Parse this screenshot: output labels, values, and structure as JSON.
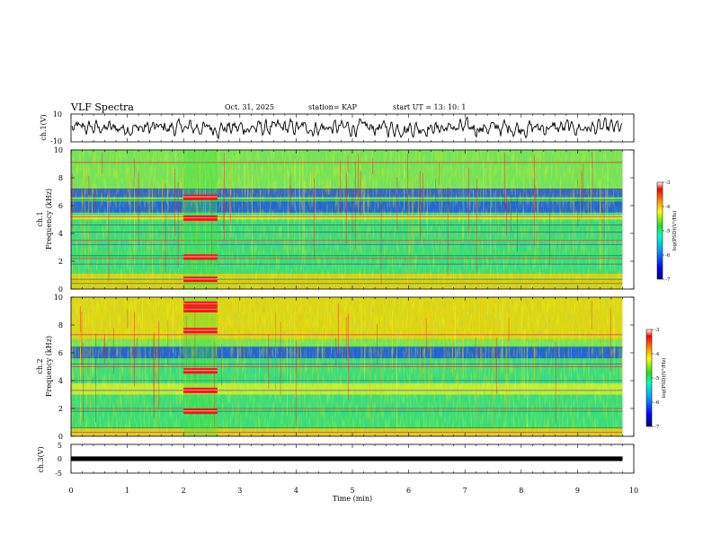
{
  "header": {
    "title": "VLF Spectra",
    "date": "Oct. 31, 2025",
    "station": "station= KAP",
    "start": "start  UT =   13: 10: 1"
  },
  "chart_data": [
    {
      "id": "ch1-waveform",
      "type": "line",
      "ylabel": "ch.1(V)",
      "ylim": [
        -10,
        10
      ],
      "yticks": [
        "10",
        "-10"
      ],
      "xlim": [
        0,
        10
      ],
      "data_extent_min": 9.8,
      "amplitude_typical": 4.5
    },
    {
      "id": "ch1-spectrogram",
      "type": "heatmap",
      "ylabel_line1": "ch.1",
      "ylabel_line2": "Frequency (kHz)",
      "ylim": [
        0,
        10
      ],
      "yticks": [
        "0",
        "2",
        "4",
        "6",
        "8",
        "10"
      ],
      "xlim": [
        0,
        10
      ],
      "data_extent_min": 9.8,
      "bands": [
        {
          "f0": 5.5,
          "f1": 6.3,
          "level": "low"
        },
        {
          "f0": 6.6,
          "f1": 7.2,
          "level": "low"
        },
        {
          "f0": 5.0,
          "f1": 5.3,
          "level": "mid-high"
        },
        {
          "f0": 0.0,
          "f1": 1.1,
          "level": "high"
        }
      ],
      "lines_khz": [
        0.4,
        0.7,
        1.8,
        2.2,
        2.4,
        3.2,
        3.5,
        4.1,
        4.6,
        5.2,
        6.4,
        7.2,
        9.1
      ],
      "burst": {
        "t0": 2.0,
        "t1": 2.6,
        "freqs_khz": [
          0.7,
          2.3,
          5.1,
          6.6
        ]
      }
    },
    {
      "id": "ch2-spectrogram",
      "type": "heatmap",
      "ylabel_line1": "ch.2",
      "ylabel_line2": "Frequency (kHz)",
      "ylim": [
        0,
        10
      ],
      "yticks": [
        "0",
        "2",
        "4",
        "6",
        "8",
        "10"
      ],
      "xlim": [
        0,
        10
      ],
      "data_extent_min": 9.8,
      "bands": [
        {
          "f0": 5.6,
          "f1": 6.4,
          "level": "low"
        },
        {
          "f0": 7.0,
          "f1": 10.0,
          "level": "high"
        },
        {
          "f0": 3.0,
          "f1": 3.8,
          "level": "mid-high"
        },
        {
          "f0": 0.0,
          "f1": 0.6,
          "level": "high"
        }
      ],
      "lines_khz": [
        0.3,
        0.6,
        1.8,
        2.0,
        3.3,
        4.0,
        5.0,
        5.2,
        6.4,
        7.3
      ],
      "burst": {
        "t0": 2.0,
        "t1": 2.6,
        "freqs_khz": [
          1.8,
          3.3,
          4.7,
          7.6,
          9.1,
          9.5
        ]
      }
    },
    {
      "id": "ch3-signal",
      "type": "line",
      "ylabel": "ch.3(V)",
      "ylim": [
        -5,
        5
      ],
      "yticks": [
        "5",
        "0",
        "-5"
      ],
      "xlim": [
        0,
        10
      ],
      "data_extent_min": 9.8,
      "level_v": 0,
      "band_width_v": 0.8
    },
    {
      "id": "time-axis",
      "xlabel": "Time (min)",
      "xticks": [
        "0",
        "1",
        "2",
        "3",
        "4",
        "5",
        "6",
        "7",
        "8",
        "9",
        "10"
      ]
    },
    {
      "id": "colorbar-1",
      "type": "colorbar",
      "label": "log(PSD)(V²/Hz)",
      "range": [
        -7,
        -3
      ],
      "ticks": [
        "-3",
        "-4",
        "-5",
        "-6",
        "-7"
      ]
    },
    {
      "id": "colorbar-2",
      "type": "colorbar",
      "label": "log(PSD)(V²/Hz)",
      "range": [
        -7,
        -3
      ],
      "ticks": [
        "-3",
        "-4",
        "-5",
        "-6",
        "-7"
      ]
    }
  ],
  "colors": {
    "axis": "#000000",
    "colormap": [
      "#000080",
      "#0000ff",
      "#00a0ff",
      "#00ffc0",
      "#20e020",
      "#ffff00",
      "#ff8000",
      "#ff0000",
      "#ffffff"
    ]
  }
}
